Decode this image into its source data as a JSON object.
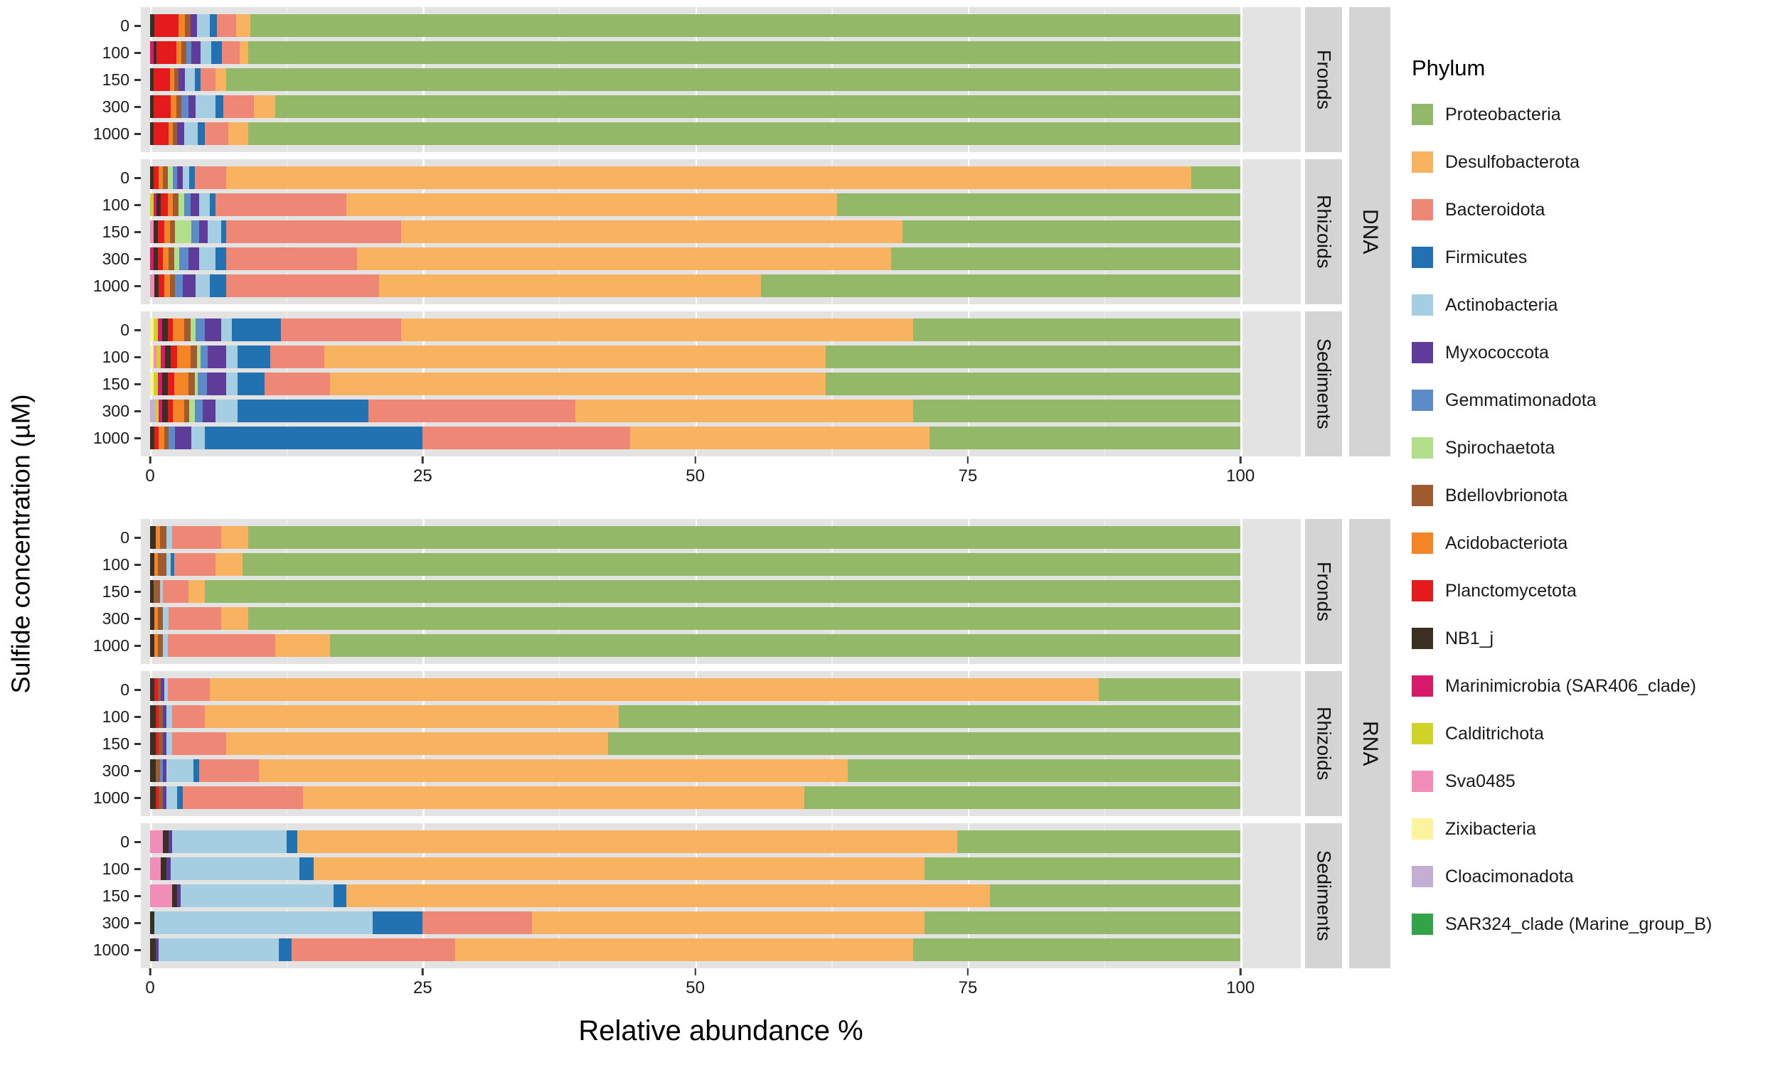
{
  "figure": {
    "x_axis_title": "Relative abundance %",
    "y_axis_title": "Sulfide concentration (µM)",
    "assays": [
      "DNA",
      "RNA"
    ],
    "tissues": [
      "Fronds",
      "Rhizoids",
      "Sediments"
    ]
  },
  "legend": {
    "title": "Phylum",
    "entries": [
      {
        "name": "Proteobacteria",
        "color": "#93b867"
      },
      {
        "name": "Desulfobacterota",
        "color": "#f9b25f"
      },
      {
        "name": "Bacteroidota",
        "color": "#ef8777"
      },
      {
        "name": "Firmicutes",
        "color": "#2272b2"
      },
      {
        "name": "Actinobacteria",
        "color": "#a6cee3"
      },
      {
        "name": "Myxococcota",
        "color": "#5f3c99"
      },
      {
        "name": "Gemmatimonadota",
        "color": "#5b8bc9"
      },
      {
        "name": "Spirochaetota",
        "color": "#b2df8a"
      },
      {
        "name": "Bdellovbrionota",
        "color": "#9e5b30"
      },
      {
        "name": "Acidobacteriota",
        "color": "#f58426"
      },
      {
        "name": "Planctomycetota",
        "color": "#e41a1c"
      },
      {
        "name": "NB1_j",
        "color": "#3a3022"
      },
      {
        "name": "Marinimicrobia (SAR406_clade)",
        "color": "#d91a6b"
      },
      {
        "name": "Calditrichota",
        "color": "#cfd327"
      },
      {
        "name": "Sva0485",
        "color": "#f28cb8"
      },
      {
        "name": "Zixibacteria",
        "color": "#fbf49c"
      },
      {
        "name": "Cloacimonadota",
        "color": "#c4aed4"
      },
      {
        "name": "SAR324_clade (Marine_group_B)",
        "color": "#33a348"
      }
    ]
  },
  "chart_data": {
    "type": "bar",
    "orientation": "horizontal",
    "stacked": true,
    "title": "",
    "xlabel": "Relative abundance %",
    "ylabel": "Sulfide concentration (µM)",
    "xlim": [
      0,
      100
    ],
    "x_ticks": [
      0,
      25,
      50,
      75,
      100
    ],
    "y_categories": [
      "0",
      "100",
      "150",
      "300",
      "1000"
    ],
    "grid": true,
    "legend_position": "right",
    "stack_order": [
      "SAR324_clade (Marine_group_B)",
      "Cloacimonadota",
      "Zixibacteria",
      "Sva0485",
      "Calditrichota",
      "Marinimicrobia (SAR406_clade)",
      "NB1_j",
      "Planctomycetota",
      "Acidobacteriota",
      "Bdellovbrionota",
      "Spirochaetota",
      "Gemmatimonadota",
      "Myxococcota",
      "Actinobacteria",
      "Firmicutes",
      "Bacteroidota",
      "Desulfobacterota",
      "Proteobacteria"
    ],
    "facets": [
      {
        "assay": "DNA",
        "tissue": "Fronds",
        "bars": [
          {
            "category": "0",
            "segments": {
              "NB1_j": 0.4,
              "Planctomycetota": 2.2,
              "Acidobacteriota": 0.6,
              "Bdellovbrionota": 0.5,
              "Myxococcota": 0.6,
              "Actinobacteria": 1.2,
              "Firmicutes": 0.6,
              "Bacteroidota": 1.8,
              "Desulfobacterota": 1.3,
              "Proteobacteria": 90.8
            }
          },
          {
            "category": "100",
            "segments": {
              "Marinimicrobia (SAR406_clade)": 0.3,
              "NB1_j": 0.3,
              "Planctomycetota": 1.8,
              "Acidobacteriota": 0.5,
              "Bdellovbrionota": 0.4,
              "Gemmatimonadota": 0.5,
              "Myxococcota": 0.8,
              "Actinobacteria": 1.0,
              "Firmicutes": 1.0,
              "Bacteroidota": 1.6,
              "Desulfobacterota": 0.8,
              "Proteobacteria": 91.0
            }
          },
          {
            "category": "150",
            "segments": {
              "NB1_j": 0.3,
              "Planctomycetota": 1.5,
              "Acidobacteriota": 0.4,
              "Bdellovbrionota": 0.4,
              "Myxococcota": 0.6,
              "Actinobacteria": 0.9,
              "Firmicutes": 0.5,
              "Bacteroidota": 1.4,
              "Desulfobacterota": 1.0,
              "Proteobacteria": 93.0
            }
          },
          {
            "category": "300",
            "segments": {
              "NB1_j": 0.3,
              "Planctomycetota": 1.6,
              "Acidobacteriota": 0.5,
              "Bdellovbrionota": 0.5,
              "Gemmatimonadota": 0.6,
              "Myxococcota": 0.7,
              "Actinobacteria": 1.8,
              "Firmicutes": 0.7,
              "Bacteroidota": 2.8,
              "Desulfobacterota": 2.0,
              "Proteobacteria": 88.5
            }
          },
          {
            "category": "1000",
            "segments": {
              "NB1_j": 0.3,
              "Planctomycetota": 1.4,
              "Acidobacteriota": 0.4,
              "Bdellovbrionota": 0.4,
              "Myxococcota": 0.6,
              "Actinobacteria": 1.3,
              "Firmicutes": 0.6,
              "Bacteroidota": 2.2,
              "Desulfobacterota": 1.8,
              "Proteobacteria": 91.0
            }
          }
        ]
      },
      {
        "assay": "DNA",
        "tissue": "Rhizoids",
        "bars": [
          {
            "category": "0",
            "segments": {
              "NB1_j": 0.3,
              "Planctomycetota": 0.5,
              "Acidobacteriota": 0.4,
              "Bdellovbrionota": 0.4,
              "Spirochaetota": 0.5,
              "Gemmatimonadota": 0.4,
              "Myxococcota": 0.5,
              "Actinobacteria": 0.6,
              "Firmicutes": 0.5,
              "Bacteroidota": 2.9,
              "Desulfobacterota": 88.5,
              "Proteobacteria": 4.5
            }
          },
          {
            "category": "100",
            "segments": {
              "Calditrichota": 0.3,
              "Marinimicrobia (SAR406_clade)": 0.3,
              "NB1_j": 0.4,
              "Planctomycetota": 0.6,
              "Acidobacteriota": 0.5,
              "Bdellovbrionota": 0.5,
              "Spirochaetota": 0.5,
              "Gemmatimonadota": 0.6,
              "Myxococcota": 0.8,
              "Actinobacteria": 1.0,
              "Firmicutes": 0.5,
              "Bacteroidota": 12.0,
              "Desulfobacterota": 45.0,
              "Proteobacteria": 37.0
            }
          },
          {
            "category": "150",
            "segments": {
              "Sva0485": 0.3,
              "NB1_j": 0.4,
              "Planctomycetota": 0.6,
              "Acidobacteriota": 0.5,
              "Bdellovbrionota": 0.5,
              "Spirochaetota": 1.5,
              "Gemmatimonadota": 0.7,
              "Myxococcota": 0.8,
              "Actinobacteria": 1.2,
              "Firmicutes": 0.5,
              "Bacteroidota": 16.0,
              "Desulfobacterota": 46.0,
              "Proteobacteria": 31.0
            }
          },
          {
            "category": "300",
            "segments": {
              "Marinimicrobia (SAR406_clade)": 0.3,
              "NB1_j": 0.4,
              "Planctomycetota": 0.5,
              "Acidobacteriota": 0.5,
              "Bdellovbrionota": 0.5,
              "Spirochaetota": 0.5,
              "Gemmatimonadota": 0.8,
              "Myxococcota": 1.0,
              "Actinobacteria": 1.5,
              "Firmicutes": 1.0,
              "Bacteroidota": 12.0,
              "Desulfobacterota": 49.0,
              "Proteobacteria": 32.0
            }
          },
          {
            "category": "1000",
            "segments": {
              "Sva0485": 0.4,
              "NB1_j": 0.4,
              "Planctomycetota": 0.5,
              "Acidobacteriota": 0.5,
              "Bdellovbrionota": 0.5,
              "Gemmatimonadota": 0.7,
              "Myxococcota": 1.2,
              "Actinobacteria": 1.3,
              "Firmicutes": 1.5,
              "Bacteroidota": 14.0,
              "Desulfobacterota": 35.0,
              "Proteobacteria": 44.0
            }
          }
        ]
      },
      {
        "assay": "DNA",
        "tissue": "Sediments",
        "bars": [
          {
            "category": "0",
            "segments": {
              "Zixibacteria": 0.3,
              "Calditrichota": 0.4,
              "Marinimicrobia (SAR406_clade)": 0.4,
              "NB1_j": 0.5,
              "Planctomycetota": 0.5,
              "Acidobacteriota": 1.0,
              "Bdellovbrionota": 0.6,
              "Spirochaetota": 0.5,
              "Gemmatimonadota": 0.8,
              "Myxococcota": 1.5,
              "Actinobacteria": 1.0,
              "Firmicutes": 4.5,
              "Bacteroidota": 11.0,
              "Desulfobacterota": 47.0,
              "Proteobacteria": 30.0
            }
          },
          {
            "category": "100",
            "segments": {
              "Sva0485": 0.3,
              "Zixibacteria": 0.3,
              "Calditrichota": 0.4,
              "Marinimicrobia (SAR406_clade)": 0.4,
              "NB1_j": 0.5,
              "Planctomycetota": 0.6,
              "Acidobacteriota": 1.2,
              "Bdellovbrionota": 0.6,
              "Spirochaetota": 0.3,
              "Gemmatimonadota": 0.7,
              "Myxococcota": 1.7,
              "Actinobacteria": 1.0,
              "Firmicutes": 3.0,
              "Bacteroidota": 5.0,
              "Desulfobacterota": 46.0,
              "Proteobacteria": 38.0
            }
          },
          {
            "category": "150",
            "segments": {
              "Zixibacteria": 0.3,
              "Calditrichota": 0.4,
              "Marinimicrobia (SAR406_clade)": 0.4,
              "NB1_j": 0.5,
              "Planctomycetota": 0.6,
              "Acidobacteriota": 1.3,
              "Bdellovbrionota": 0.6,
              "Spirochaetota": 0.3,
              "Gemmatimonadota": 0.8,
              "Myxococcota": 1.8,
              "Actinobacteria": 1.0,
              "Firmicutes": 2.5,
              "Bacteroidota": 6.0,
              "Desulfobacterota": 45.5,
              "Proteobacteria": 38.0
            }
          },
          {
            "category": "300",
            "segments": {
              "Cloacimonadota": 0.5,
              "Calditrichota": 0.3,
              "Marinimicrobia (SAR406_clade)": 0.3,
              "NB1_j": 0.5,
              "Planctomycetota": 0.5,
              "Acidobacteriota": 1.0,
              "Bdellovbrionota": 0.5,
              "Spirochaetota": 0.5,
              "Gemmatimonadota": 0.7,
              "Myxococcota": 1.2,
              "Actinobacteria": 2.0,
              "Firmicutes": 12.0,
              "Bacteroidota": 19.0,
              "Desulfobacterota": 31.0,
              "Proteobacteria": 30.0
            }
          },
          {
            "category": "1000",
            "segments": {
              "NB1_j": 0.4,
              "Planctomycetota": 0.4,
              "Acidobacteriota": 0.5,
              "Bdellovbrionota": 0.4,
              "Gemmatimonadota": 0.6,
              "Myxococcota": 1.5,
              "Actinobacteria": 1.2,
              "Firmicutes": 20.0,
              "Bacteroidota": 19.0,
              "Desulfobacterota": 27.5,
              "Proteobacteria": 28.5
            }
          }
        ]
      },
      {
        "assay": "RNA",
        "tissue": "Fronds",
        "bars": [
          {
            "category": "0",
            "segments": {
              "NB1_j": 0.5,
              "Acidobacteriota": 0.4,
              "Bdellovbrionota": 0.6,
              "Actinobacteria": 0.5,
              "Bacteroidota": 4.5,
              "Desulfobacterota": 2.5,
              "Proteobacteria": 91.0
            }
          },
          {
            "category": "100",
            "segments": {
              "NB1_j": 0.4,
              "Acidobacteriota": 0.3,
              "Bdellovbrionota": 0.8,
              "Actinobacteria": 0.4,
              "Firmicutes": 0.3,
              "Bacteroidota": 3.8,
              "Desulfobacterota": 2.5,
              "Proteobacteria": 91.5
            }
          },
          {
            "category": "150",
            "segments": {
              "NB1_j": 0.3,
              "Bdellovbrionota": 0.6,
              "Actinobacteria": 0.3,
              "Bacteroidota": 2.3,
              "Desulfobacterota": 1.5,
              "Proteobacteria": 95.0
            }
          },
          {
            "category": "300",
            "segments": {
              "NB1_j": 0.4,
              "Acidobacteriota": 0.3,
              "Bdellovbrionota": 0.5,
              "Actinobacteria": 0.5,
              "Bacteroidota": 4.8,
              "Desulfobacterota": 2.5,
              "Proteobacteria": 91.0
            }
          },
          {
            "category": "1000",
            "segments": {
              "NB1_j": 0.4,
              "Acidobacteriota": 0.3,
              "Bdellovbrionota": 0.5,
              "Actinobacteria": 0.4,
              "Bacteroidota": 9.9,
              "Desulfobacterota": 5.0,
              "Proteobacteria": 83.5
            }
          }
        ]
      },
      {
        "assay": "RNA",
        "tissue": "Rhizoids",
        "bars": [
          {
            "category": "0",
            "segments": {
              "NB1_j": 0.4,
              "Planctomycetota": 0.3,
              "Bdellovbrionota": 0.3,
              "Myxococcota": 0.3,
              "Actinobacteria": 0.3,
              "Bacteroidota": 3.9,
              "Desulfobacterota": 81.5,
              "Proteobacteria": 13.0
            }
          },
          {
            "category": "100",
            "segments": {
              "NB1_j": 0.5,
              "Planctomycetota": 0.3,
              "Bdellovbrionota": 0.4,
              "Myxococcota": 0.3,
              "Actinobacteria": 0.5,
              "Bacteroidota": 3.0,
              "Desulfobacterota": 38.0,
              "Proteobacteria": 57.0
            }
          },
          {
            "category": "150",
            "segments": {
              "NB1_j": 0.5,
              "Planctomycetota": 0.3,
              "Bdellovbrionota": 0.4,
              "Myxococcota": 0.3,
              "Actinobacteria": 0.5,
              "Bacteroidota": 5.0,
              "Desulfobacterota": 35.0,
              "Proteobacteria": 58.0
            }
          },
          {
            "category": "300",
            "segments": {
              "NB1_j": 0.5,
              "Bdellovbrionota": 0.4,
              "Gemmatimonadota": 0.3,
              "Myxococcota": 0.3,
              "Actinobacteria": 2.5,
              "Firmicutes": 0.5,
              "Bacteroidota": 5.5,
              "Desulfobacterota": 54.0,
              "Proteobacteria": 36.0
            }
          },
          {
            "category": "1000",
            "segments": {
              "NB1_j": 0.5,
              "Planctomycetota": 0.3,
              "Bdellovbrionota": 0.4,
              "Myxococcota": 0.3,
              "Actinobacteria": 1.0,
              "Firmicutes": 0.5,
              "Bacteroidota": 11.0,
              "Desulfobacterota": 46.0,
              "Proteobacteria": 40.0
            }
          }
        ]
      },
      {
        "assay": "RNA",
        "tissue": "Sediments",
        "bars": [
          {
            "category": "0",
            "segments": {
              "NB1_j": 0.5,
              "Myxococcota": 0.3,
              "Actinobacteria": 10.5,
              "Firmicutes": 1.0,
              "Sva0485": 1.2,
              "Desulfobacterota": 60.5,
              "Proteobacteria": 26.0
            }
          },
          {
            "category": "100",
            "segments": {
              "NB1_j": 0.5,
              "Myxococcota": 0.4,
              "Actinobacteria": 11.8,
              "Firmicutes": 1.3,
              "Sva0485": 1.0,
              "Desulfobacterota": 56.0,
              "Proteobacteria": 29.0
            }
          },
          {
            "category": "150",
            "segments": {
              "NB1_j": 0.5,
              "Myxococcota": 0.3,
              "Actinobacteria": 14.0,
              "Firmicutes": 1.2,
              "Sva0485": 2.0,
              "Desulfobacterota": 59.0,
              "Proteobacteria": 23.0
            }
          },
          {
            "category": "300",
            "segments": {
              "NB1_j": 0.4,
              "Firmicutes": 4.6,
              "Actinobacteria": 20.0,
              "Bacteroidota": 10.0,
              "Desulfobacterota": 36.0,
              "Proteobacteria": 29.0
            }
          },
          {
            "category": "1000",
            "segments": {
              "NB1_j": 0.5,
              "Myxococcota": 0.3,
              "Firmicutes": 1.2,
              "Actinobacteria": 11.0,
              "Bacteroidota": 15.0,
              "Desulfobacterota": 42.0,
              "Proteobacteria": 30.0
            }
          }
        ]
      }
    ]
  },
  "colors": {
    "panel_background": "#e3e3e3",
    "strip_background": "#d4d4d4",
    "grid_major": "#ffffff"
  }
}
